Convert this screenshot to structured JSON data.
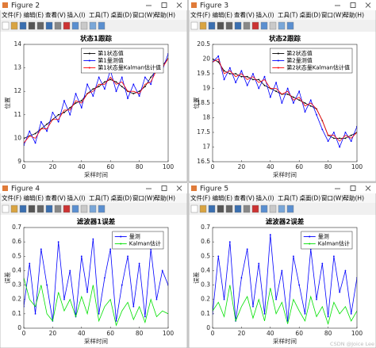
{
  "windows": [
    {
      "title": "Figure 2"
    },
    {
      "title": "Figure 3"
    },
    {
      "title": "Figure 4"
    },
    {
      "title": "Figure 5"
    }
  ],
  "menu": [
    "文件(F)",
    "编辑(E)",
    "查看(V)",
    "插入(I)",
    "工具(T)",
    "桌面(D)",
    "窗口(W)",
    "帮助(H)"
  ],
  "watermark": "CSDN @Joice Lee",
  "chart_data": [
    {
      "type": "line",
      "title": "状态1跟踪",
      "xlabel": "采样时间",
      "ylabel": "位置",
      "x": [
        0,
        4,
        8,
        12,
        16,
        20,
        24,
        28,
        32,
        36,
        40,
        44,
        48,
        52,
        56,
        60,
        64,
        68,
        72,
        76,
        80,
        84,
        88,
        92,
        96,
        100
      ],
      "xlim": [
        0,
        100
      ],
      "xticks": [
        0,
        20,
        40,
        60,
        80,
        100
      ],
      "ylim": [
        9,
        14
      ],
      "yticks": [
        9,
        10,
        11,
        12,
        13,
        14
      ],
      "grid": false,
      "legend": "upper right",
      "series": [
        {
          "name": "第1状态值",
          "color": "#000000",
          "values": [
            10.0,
            10.1,
            10.2,
            10.4,
            10.6,
            10.8,
            11.0,
            11.1,
            11.3,
            11.5,
            11.6,
            11.9,
            12.1,
            12.2,
            12.4,
            12.5,
            12.4,
            12.2,
            12.0,
            11.9,
            12.0,
            12.2,
            12.6,
            12.9,
            13.1,
            13.4
          ]
        },
        {
          "name": "第1量测值",
          "color": "#0000ff",
          "values": [
            9.7,
            10.3,
            9.8,
            10.7,
            10.3,
            11.1,
            10.7,
            11.6,
            11.0,
            11.9,
            11.3,
            12.3,
            11.8,
            12.6,
            12.1,
            12.9,
            12.0,
            12.6,
            11.7,
            12.3,
            11.8,
            12.6,
            12.3,
            13.2,
            12.9,
            13.6
          ]
        },
        {
          "name": "第1状态量Kalman估计值",
          "color": "#ff0000",
          "values": [
            9.8,
            10.1,
            10.0,
            10.4,
            10.4,
            10.8,
            10.8,
            11.2,
            11.2,
            11.6,
            11.5,
            11.9,
            12.0,
            12.3,
            12.3,
            12.6,
            12.3,
            12.4,
            12.0,
            12.0,
            11.9,
            12.3,
            12.4,
            12.9,
            13.0,
            13.4
          ]
        }
      ]
    },
    {
      "type": "line",
      "title": "状态2跟踪",
      "xlabel": "采样时间",
      "ylabel": "位置",
      "x": [
        0,
        4,
        8,
        12,
        16,
        20,
        24,
        28,
        32,
        36,
        40,
        44,
        48,
        52,
        56,
        60,
        64,
        68,
        72,
        76,
        80,
        84,
        88,
        92,
        96,
        100
      ],
      "xlim": [
        0,
        100
      ],
      "xticks": [
        0,
        20,
        40,
        60,
        80,
        100
      ],
      "ylim": [
        16.5,
        20.5
      ],
      "yticks": [
        16.5,
        17,
        17.5,
        18,
        18.5,
        19,
        19.5,
        20,
        20.5
      ],
      "grid": false,
      "legend": "upper right",
      "series": [
        {
          "name": "第2状态值",
          "color": "#000000",
          "values": [
            20.0,
            19.9,
            19.6,
            19.5,
            19.5,
            19.4,
            19.4,
            19.3,
            19.3,
            19.1,
            19.0,
            18.9,
            18.8,
            18.8,
            18.7,
            18.6,
            18.5,
            18.4,
            18.3,
            17.9,
            17.4,
            17.3,
            17.3,
            17.3,
            17.4,
            17.5
          ]
        },
        {
          "name": "第2量测值",
          "color": "#0000ff",
          "values": [
            19.9,
            20.1,
            19.3,
            19.7,
            19.2,
            19.6,
            19.1,
            19.5,
            19.0,
            19.4,
            18.7,
            19.2,
            18.5,
            19.0,
            18.5,
            18.9,
            18.2,
            18.6,
            18.1,
            17.6,
            17.2,
            17.5,
            17.0,
            17.5,
            17.2,
            17.7
          ]
        },
        {
          "name": "第2状态量Kalman估计值",
          "color": "#ff0000",
          "values": [
            19.9,
            20.0,
            19.5,
            19.6,
            19.4,
            19.5,
            19.3,
            19.4,
            19.2,
            19.3,
            19.0,
            19.0,
            18.8,
            18.9,
            18.6,
            18.7,
            18.4,
            18.5,
            18.3,
            17.9,
            17.4,
            17.4,
            17.2,
            17.4,
            17.3,
            17.5
          ]
        }
      ]
    },
    {
      "type": "line",
      "title": "滤波器1误差",
      "xlabel": "采样时间",
      "ylabel": "误差",
      "x": [
        0,
        4,
        8,
        12,
        16,
        20,
        24,
        28,
        32,
        36,
        40,
        44,
        48,
        52,
        56,
        60,
        64,
        68,
        72,
        76,
        80,
        84,
        88,
        92,
        96,
        100
      ],
      "xlim": [
        0,
        100
      ],
      "xticks": [
        0,
        20,
        40,
        60,
        80,
        100
      ],
      "ylim": [
        0,
        0.7
      ],
      "yticks": [
        0,
        0.1,
        0.2,
        0.3,
        0.4,
        0.5,
        0.6,
        0.7
      ],
      "grid": false,
      "legend": "upper right",
      "series": [
        {
          "name": "量测",
          "color": "#0000ff",
          "values": [
            0.15,
            0.45,
            0.1,
            0.55,
            0.3,
            0.05,
            0.6,
            0.2,
            0.4,
            0.08,
            0.5,
            0.25,
            0.62,
            0.1,
            0.35,
            0.55,
            0.05,
            0.3,
            0.5,
            0.15,
            0.45,
            0.08,
            0.55,
            0.2,
            0.4,
            0.3
          ]
        },
        {
          "name": "Kalman估计",
          "color": "#00e000",
          "values": [
            0.35,
            0.2,
            0.15,
            0.3,
            0.1,
            0.05,
            0.25,
            0.12,
            0.2,
            0.08,
            0.22,
            0.1,
            0.3,
            0.05,
            0.15,
            0.2,
            0.02,
            0.12,
            0.18,
            0.06,
            0.15,
            0.04,
            0.2,
            0.08,
            0.12,
            0.1
          ]
        }
      ]
    },
    {
      "type": "line",
      "title": "滤波器2误差",
      "xlabel": "采样时间",
      "ylabel": "误差",
      "x": [
        0,
        4,
        8,
        12,
        16,
        20,
        24,
        28,
        32,
        36,
        40,
        44,
        48,
        52,
        56,
        60,
        64,
        68,
        72,
        76,
        80,
        84,
        88,
        92,
        96,
        100
      ],
      "xlim": [
        0,
        100
      ],
      "xticks": [
        0,
        20,
        40,
        60,
        80,
        100
      ],
      "ylim": [
        0,
        0.7
      ],
      "yticks": [
        0,
        0.1,
        0.2,
        0.3,
        0.4,
        0.5,
        0.6,
        0.7
      ],
      "grid": false,
      "legend": "upper right",
      "series": [
        {
          "name": "量测",
          "color": "#0000ff",
          "values": [
            0.1,
            0.5,
            0.2,
            0.6,
            0.05,
            0.35,
            0.55,
            0.15,
            0.45,
            0.1,
            0.65,
            0.2,
            0.4,
            0.05,
            0.5,
            0.3,
            0.1,
            0.55,
            0.2,
            0.45,
            0.08,
            0.5,
            0.25,
            0.4,
            0.1,
            0.35
          ]
        },
        {
          "name": "Kalman估计",
          "color": "#00e000",
          "values": [
            0.12,
            0.18,
            0.08,
            0.3,
            0.05,
            0.15,
            0.22,
            0.07,
            0.2,
            0.05,
            0.28,
            0.1,
            0.18,
            0.03,
            0.2,
            0.12,
            0.05,
            0.22,
            0.08,
            0.15,
            0.03,
            0.18,
            0.1,
            0.15,
            0.05,
            0.12
          ]
        }
      ]
    }
  ]
}
